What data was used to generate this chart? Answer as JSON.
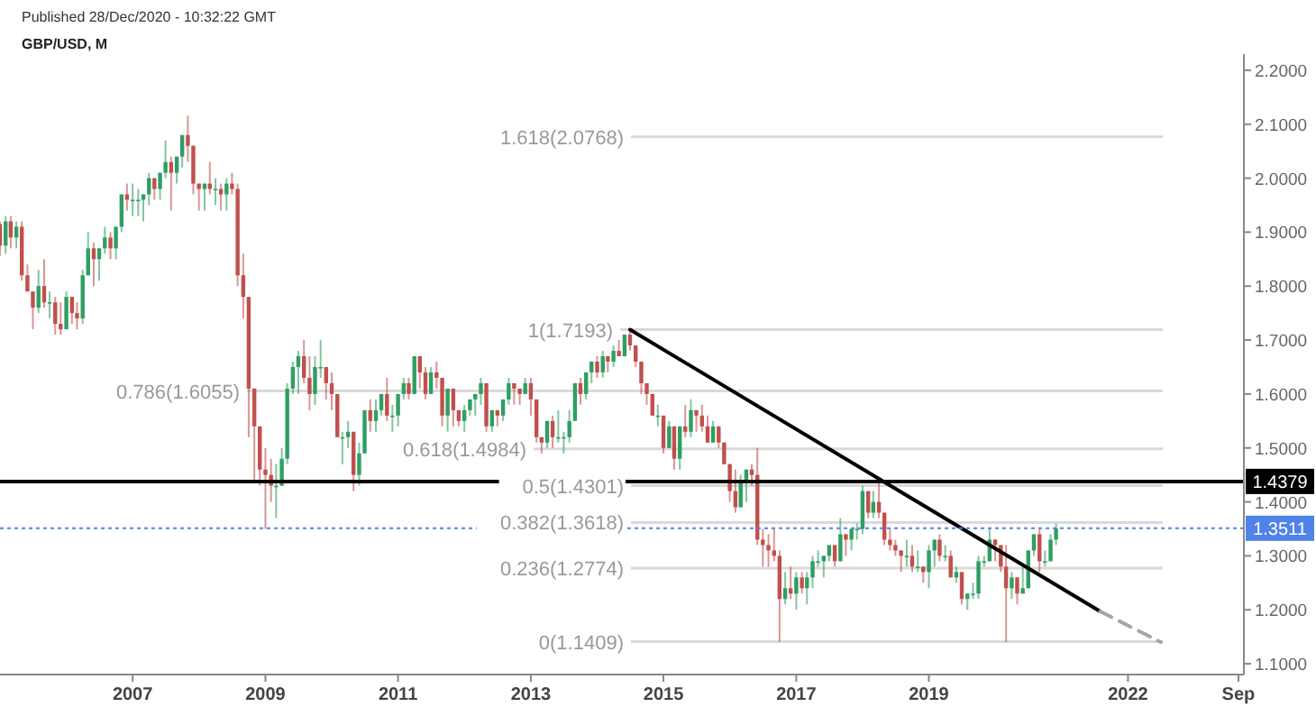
{
  "chart_data": {
    "type": "candlestick",
    "title": "GBP/USD, M",
    "subtitle": "Published 28/Dec/2020 - 10:32:22 GMT",
    "x": [
      "2005-01",
      "2005-02",
      "2005-03",
      "2005-04",
      "2005-05",
      "2005-06",
      "2005-07",
      "2005-08",
      "2005-09",
      "2005-10",
      "2005-11",
      "2005-12",
      "2006-01",
      "2006-02",
      "2006-03",
      "2006-04",
      "2006-05",
      "2006-06",
      "2006-07",
      "2006-08",
      "2006-09",
      "2006-10",
      "2006-11",
      "2006-12",
      "2007-01",
      "2007-02",
      "2007-03",
      "2007-04",
      "2007-05",
      "2007-06",
      "2007-07",
      "2007-08",
      "2007-09",
      "2007-10",
      "2007-11",
      "2007-12",
      "2008-01",
      "2008-02",
      "2008-03",
      "2008-04",
      "2008-05",
      "2008-06",
      "2008-07",
      "2008-08",
      "2008-09",
      "2008-10",
      "2008-11",
      "2008-12",
      "2009-01",
      "2009-02",
      "2009-03",
      "2009-04",
      "2009-05",
      "2009-06",
      "2009-07",
      "2009-08",
      "2009-09",
      "2009-10",
      "2009-11",
      "2009-12",
      "2010-01",
      "2010-02",
      "2010-03",
      "2010-04",
      "2010-05",
      "2010-06",
      "2010-07",
      "2010-08",
      "2010-09",
      "2010-10",
      "2010-11",
      "2010-12",
      "2011-01",
      "2011-02",
      "2011-03",
      "2011-04",
      "2011-05",
      "2011-06",
      "2011-07",
      "2011-08",
      "2011-09",
      "2011-10",
      "2011-11",
      "2011-12",
      "2012-01",
      "2012-02",
      "2012-03",
      "2012-04",
      "2012-05",
      "2012-06",
      "2012-07",
      "2012-08",
      "2012-09",
      "2012-10",
      "2012-11",
      "2012-12",
      "2013-01",
      "2013-02",
      "2013-03",
      "2013-04",
      "2013-05",
      "2013-06",
      "2013-07",
      "2013-08",
      "2013-09",
      "2013-10",
      "2013-11",
      "2013-12",
      "2014-01",
      "2014-02",
      "2014-03",
      "2014-04",
      "2014-05",
      "2014-06",
      "2014-07",
      "2014-08",
      "2014-09",
      "2014-10",
      "2014-11",
      "2014-12",
      "2015-01",
      "2015-02",
      "2015-03",
      "2015-04",
      "2015-05",
      "2015-06",
      "2015-07",
      "2015-08",
      "2015-09",
      "2015-10",
      "2015-11",
      "2015-12",
      "2016-01",
      "2016-02",
      "2016-03",
      "2016-04",
      "2016-05",
      "2016-06",
      "2016-07",
      "2016-08",
      "2016-09",
      "2016-10",
      "2016-11",
      "2016-12",
      "2017-01",
      "2017-02",
      "2017-03",
      "2017-04",
      "2017-05",
      "2017-06",
      "2017-07",
      "2017-08",
      "2017-09",
      "2017-10",
      "2017-11",
      "2017-12",
      "2018-01",
      "2018-02",
      "2018-03",
      "2018-04",
      "2018-05",
      "2018-06",
      "2018-07",
      "2018-08",
      "2018-09",
      "2018-10",
      "2018-11",
      "2018-12",
      "2019-01",
      "2019-02",
      "2019-03",
      "2019-04",
      "2019-05",
      "2019-06",
      "2019-07",
      "2019-08",
      "2019-09",
      "2019-10",
      "2019-11",
      "2019-12",
      "2020-01",
      "2020-02",
      "2020-03",
      "2020-04",
      "2020-05",
      "2020-06",
      "2020-07",
      "2020-08",
      "2020-09",
      "2020-10",
      "2020-11",
      "2020-12"
    ],
    "ohlc": [
      [
        1.915,
        1.92,
        1.855,
        1.875
      ],
      [
        1.875,
        1.93,
        1.86,
        1.92
      ],
      [
        1.92,
        1.93,
        1.87,
        1.89
      ],
      [
        1.89,
        1.92,
        1.87,
        1.91
      ],
      [
        1.91,
        1.92,
        1.81,
        1.82
      ],
      [
        1.82,
        1.84,
        1.79,
        1.79
      ],
      [
        1.79,
        1.79,
        1.72,
        1.76
      ],
      [
        1.76,
        1.83,
        1.75,
        1.8
      ],
      [
        1.8,
        1.85,
        1.76,
        1.77
      ],
      [
        1.77,
        1.79,
        1.74,
        1.77
      ],
      [
        1.77,
        1.78,
        1.71,
        1.73
      ],
      [
        1.73,
        1.77,
        1.71,
        1.72
      ],
      [
        1.72,
        1.79,
        1.72,
        1.78
      ],
      [
        1.78,
        1.78,
        1.73,
        1.75
      ],
      [
        1.75,
        1.77,
        1.72,
        1.74
      ],
      [
        1.74,
        1.83,
        1.73,
        1.82
      ],
      [
        1.82,
        1.9,
        1.82,
        1.87
      ],
      [
        1.87,
        1.88,
        1.8,
        1.85
      ],
      [
        1.85,
        1.87,
        1.81,
        1.87
      ],
      [
        1.87,
        1.91,
        1.86,
        1.89
      ],
      [
        1.89,
        1.9,
        1.85,
        1.87
      ],
      [
        1.87,
        1.91,
        1.85,
        1.91
      ],
      [
        1.91,
        1.97,
        1.9,
        1.97
      ],
      [
        1.97,
        1.99,
        1.94,
        1.96
      ],
      [
        1.96,
        1.99,
        1.93,
        1.96
      ],
      [
        1.96,
        1.98,
        1.93,
        1.96
      ],
      [
        1.96,
        1.97,
        1.92,
        1.97
      ],
      [
        1.97,
        2.01,
        1.95,
        2.0
      ],
      [
        2.0,
        2.0,
        1.96,
        1.98
      ],
      [
        1.98,
        2.01,
        1.96,
        2.01
      ],
      [
        2.01,
        2.07,
        2.0,
        2.03
      ],
      [
        2.03,
        2.04,
        1.94,
        2.01
      ],
      [
        2.01,
        2.04,
        1.99,
        2.04
      ],
      [
        2.04,
        2.08,
        2.02,
        2.08
      ],
      [
        2.08,
        2.116,
        2.03,
        2.06
      ],
      [
        2.06,
        2.06,
        1.97,
        1.99
      ],
      [
        1.99,
        1.99,
        1.94,
        1.98
      ],
      [
        1.98,
        1.99,
        1.94,
        1.99
      ],
      [
        1.99,
        2.03,
        1.97,
        1.98
      ],
      [
        1.98,
        2.0,
        1.95,
        1.98
      ],
      [
        1.98,
        1.99,
        1.94,
        1.97
      ],
      [
        1.97,
        2.0,
        1.94,
        1.99
      ],
      [
        1.99,
        2.01,
        1.97,
        1.98
      ],
      [
        1.98,
        1.99,
        1.8,
        1.82
      ],
      [
        1.82,
        1.86,
        1.74,
        1.78
      ],
      [
        1.78,
        1.78,
        1.52,
        1.61
      ],
      [
        1.61,
        1.61,
        1.44,
        1.54
      ],
      [
        1.54,
        1.54,
        1.43,
        1.46
      ],
      [
        1.46,
        1.5,
        1.35,
        1.45
      ],
      [
        1.45,
        1.48,
        1.4,
        1.43
      ],
      [
        1.43,
        1.47,
        1.37,
        1.43
      ],
      [
        1.43,
        1.5,
        1.43,
        1.48
      ],
      [
        1.48,
        1.62,
        1.47,
        1.61
      ],
      [
        1.61,
        1.66,
        1.6,
        1.65
      ],
      [
        1.65,
        1.68,
        1.6,
        1.67
      ],
      [
        1.67,
        1.7,
        1.62,
        1.63
      ],
      [
        1.63,
        1.67,
        1.57,
        1.6
      ],
      [
        1.6,
        1.67,
        1.58,
        1.65
      ],
      [
        1.65,
        1.7,
        1.63,
        1.65
      ],
      [
        1.65,
        1.65,
        1.59,
        1.62
      ],
      [
        1.62,
        1.64,
        1.57,
        1.6
      ],
      [
        1.6,
        1.6,
        1.52,
        1.52
      ],
      [
        1.52,
        1.53,
        1.47,
        1.52
      ],
      [
        1.52,
        1.55,
        1.5,
        1.53
      ],
      [
        1.53,
        1.53,
        1.42,
        1.45
      ],
      [
        1.45,
        1.51,
        1.43,
        1.49
      ],
      [
        1.49,
        1.57,
        1.49,
        1.57
      ],
      [
        1.57,
        1.59,
        1.53,
        1.55
      ],
      [
        1.55,
        1.59,
        1.53,
        1.57
      ],
      [
        1.57,
        1.6,
        1.56,
        1.6
      ],
      [
        1.6,
        1.63,
        1.55,
        1.56
      ],
      [
        1.56,
        1.58,
        1.53,
        1.56
      ],
      [
        1.56,
        1.6,
        1.54,
        1.6
      ],
      [
        1.6,
        1.63,
        1.59,
        1.62
      ],
      [
        1.62,
        1.63,
        1.59,
        1.6
      ],
      [
        1.6,
        1.67,
        1.6,
        1.67
      ],
      [
        1.67,
        1.67,
        1.61,
        1.64
      ],
      [
        1.64,
        1.65,
        1.59,
        1.6
      ],
      [
        1.6,
        1.65,
        1.6,
        1.64
      ],
      [
        1.64,
        1.66,
        1.61,
        1.63
      ],
      [
        1.63,
        1.63,
        1.54,
        1.56
      ],
      [
        1.56,
        1.61,
        1.53,
        1.61
      ],
      [
        1.61,
        1.61,
        1.54,
        1.57
      ],
      [
        1.57,
        1.57,
        1.54,
        1.55
      ],
      [
        1.55,
        1.58,
        1.53,
        1.57
      ],
      [
        1.57,
        1.59,
        1.56,
        1.59
      ],
      [
        1.59,
        1.6,
        1.56,
        1.6
      ],
      [
        1.6,
        1.63,
        1.58,
        1.62
      ],
      [
        1.62,
        1.62,
        1.53,
        1.54
      ],
      [
        1.54,
        1.57,
        1.53,
        1.57
      ],
      [
        1.57,
        1.57,
        1.54,
        1.56
      ],
      [
        1.56,
        1.59,
        1.55,
        1.59
      ],
      [
        1.59,
        1.63,
        1.58,
        1.62
      ],
      [
        1.62,
        1.62,
        1.58,
        1.61
      ],
      [
        1.61,
        1.61,
        1.58,
        1.6
      ],
      [
        1.6,
        1.63,
        1.6,
        1.62
      ],
      [
        1.62,
        1.63,
        1.56,
        1.59
      ],
      [
        1.59,
        1.59,
        1.51,
        1.52
      ],
      [
        1.52,
        1.52,
        1.49,
        1.51
      ],
      [
        1.51,
        1.55,
        1.5,
        1.55
      ],
      [
        1.55,
        1.56,
        1.5,
        1.52
      ],
      [
        1.52,
        1.57,
        1.51,
        1.52
      ],
      [
        1.52,
        1.53,
        1.49,
        1.52
      ],
      [
        1.52,
        1.57,
        1.51,
        1.55
      ],
      [
        1.55,
        1.62,
        1.55,
        1.62
      ],
      [
        1.62,
        1.63,
        1.58,
        1.6
      ],
      [
        1.6,
        1.64,
        1.59,
        1.64
      ],
      [
        1.64,
        1.66,
        1.62,
        1.66
      ],
      [
        1.66,
        1.67,
        1.63,
        1.64
      ],
      [
        1.64,
        1.68,
        1.63,
        1.67
      ],
      [
        1.67,
        1.67,
        1.64,
        1.66
      ],
      [
        1.66,
        1.69,
        1.65,
        1.68
      ],
      [
        1.68,
        1.7,
        1.67,
        1.67
      ],
      [
        1.67,
        1.71,
        1.67,
        1.71
      ],
      [
        1.71,
        1.7193,
        1.68,
        1.69
      ],
      [
        1.69,
        1.69,
        1.65,
        1.66
      ],
      [
        1.66,
        1.66,
        1.6,
        1.62
      ],
      [
        1.62,
        1.62,
        1.58,
        1.6
      ],
      [
        1.6,
        1.6,
        1.56,
        1.56
      ],
      [
        1.56,
        1.58,
        1.54,
        1.56
      ],
      [
        1.56,
        1.56,
        1.49,
        1.5
      ],
      [
        1.5,
        1.55,
        1.5,
        1.54
      ],
      [
        1.54,
        1.54,
        1.46,
        1.48
      ],
      [
        1.48,
        1.54,
        1.46,
        1.54
      ],
      [
        1.54,
        1.58,
        1.52,
        1.53
      ],
      [
        1.53,
        1.59,
        1.52,
        1.57
      ],
      [
        1.57,
        1.57,
        1.53,
        1.56
      ],
      [
        1.56,
        1.58,
        1.53,
        1.54
      ],
      [
        1.54,
        1.56,
        1.51,
        1.51
      ],
      [
        1.51,
        1.55,
        1.51,
        1.54
      ],
      [
        1.54,
        1.54,
        1.5,
        1.51
      ],
      [
        1.51,
        1.51,
        1.47,
        1.47
      ],
      [
        1.47,
        1.47,
        1.4,
        1.42
      ],
      [
        1.42,
        1.46,
        1.38,
        1.39
      ],
      [
        1.39,
        1.45,
        1.39,
        1.44
      ],
      [
        1.44,
        1.46,
        1.4,
        1.46
      ],
      [
        1.46,
        1.47,
        1.43,
        1.45
      ],
      [
        1.45,
        1.5,
        1.32,
        1.33
      ],
      [
        1.33,
        1.35,
        1.28,
        1.32
      ],
      [
        1.32,
        1.34,
        1.28,
        1.31
      ],
      [
        1.31,
        1.35,
        1.29,
        1.3
      ],
      [
        1.3,
        1.31,
        1.1409,
        1.22
      ],
      [
        1.22,
        1.27,
        1.21,
        1.24
      ],
      [
        1.24,
        1.28,
        1.22,
        1.23
      ],
      [
        1.23,
        1.27,
        1.2,
        1.26
      ],
      [
        1.26,
        1.27,
        1.23,
        1.24
      ],
      [
        1.24,
        1.27,
        1.21,
        1.26
      ],
      [
        1.26,
        1.3,
        1.24,
        1.29
      ],
      [
        1.29,
        1.31,
        1.28,
        1.29
      ],
      [
        1.29,
        1.3,
        1.26,
        1.3
      ],
      [
        1.3,
        1.32,
        1.29,
        1.32
      ],
      [
        1.32,
        1.32,
        1.28,
        1.29
      ],
      [
        1.29,
        1.37,
        1.29,
        1.34
      ],
      [
        1.34,
        1.34,
        1.3,
        1.33
      ],
      [
        1.33,
        1.35,
        1.31,
        1.35
      ],
      [
        1.35,
        1.36,
        1.33,
        1.35
      ],
      [
        1.35,
        1.43,
        1.34,
        1.42
      ],
      [
        1.42,
        1.42,
        1.37,
        1.38
      ],
      [
        1.38,
        1.42,
        1.37,
        1.4
      ],
      [
        1.4,
        1.44,
        1.37,
        1.38
      ],
      [
        1.38,
        1.38,
        1.32,
        1.33
      ],
      [
        1.33,
        1.35,
        1.31,
        1.32
      ],
      [
        1.32,
        1.33,
        1.3,
        1.31
      ],
      [
        1.31,
        1.31,
        1.27,
        1.3
      ],
      [
        1.3,
        1.33,
        1.28,
        1.3
      ],
      [
        1.3,
        1.32,
        1.27,
        1.28
      ],
      [
        1.28,
        1.31,
        1.27,
        1.28
      ],
      [
        1.28,
        1.28,
        1.25,
        1.27
      ],
      [
        1.27,
        1.32,
        1.24,
        1.31
      ],
      [
        1.31,
        1.33,
        1.28,
        1.33
      ],
      [
        1.33,
        1.34,
        1.29,
        1.3
      ],
      [
        1.3,
        1.32,
        1.29,
        1.3
      ],
      [
        1.3,
        1.31,
        1.26,
        1.26
      ],
      [
        1.26,
        1.28,
        1.25,
        1.27
      ],
      [
        1.27,
        1.27,
        1.21,
        1.22
      ],
      [
        1.22,
        1.23,
        1.2,
        1.23
      ],
      [
        1.23,
        1.25,
        1.22,
        1.23
      ],
      [
        1.23,
        1.3,
        1.22,
        1.29
      ],
      [
        1.29,
        1.3,
        1.28,
        1.29
      ],
      [
        1.29,
        1.35,
        1.29,
        1.33
      ],
      [
        1.33,
        1.33,
        1.29,
        1.32
      ],
      [
        1.32,
        1.32,
        1.27,
        1.28
      ],
      [
        1.28,
        1.32,
        1.14,
        1.24
      ],
      [
        1.24,
        1.27,
        1.22,
        1.26
      ],
      [
        1.26,
        1.26,
        1.21,
        1.23
      ],
      [
        1.23,
        1.28,
        1.23,
        1.24
      ],
      [
        1.24,
        1.31,
        1.24,
        1.31
      ],
      [
        1.31,
        1.34,
        1.3,
        1.34
      ],
      [
        1.34,
        1.35,
        1.27,
        1.29
      ],
      [
        1.29,
        1.31,
        1.28,
        1.29
      ],
      [
        1.29,
        1.34,
        1.29,
        1.33
      ],
      [
        1.33,
        1.36,
        1.32,
        1.3511
      ]
    ],
    "colors": [
      "#c0504d",
      "#2f9e62",
      "#c0504d",
      "#2f9e62",
      "#c0504d",
      "#c0504d",
      "#c0504d",
      "#2f9e62",
      "#c0504d",
      "#2f9e62",
      "#c0504d",
      "#c0504d",
      "#2f9e62",
      "#c0504d",
      "#c0504d",
      "#2f9e62",
      "#2f9e62",
      "#c0504d",
      "#2f9e62",
      "#2f9e62",
      "#c0504d",
      "#2f9e62",
      "#2f9e62",
      "#c0504d",
      "#2f9e62",
      "#2f9e62",
      "#2f9e62",
      "#2f9e62",
      "#c0504d",
      "#2f9e62",
      "#2f9e62",
      "#c0504d",
      "#2f9e62",
      "#2f9e62",
      "#c0504d",
      "#c0504d",
      "#c0504d",
      "#2f9e62",
      "#c0504d",
      "#2f9e62",
      "#c0504d",
      "#2f9e62",
      "#c0504d",
      "#c0504d",
      "#c0504d",
      "#c0504d",
      "#c0504d",
      "#c0504d",
      "#c0504d",
      "#c0504d",
      "#2f9e62",
      "#2f9e62",
      "#2f9e62",
      "#2f9e62",
      "#2f9e62",
      "#c0504d",
      "#c0504d",
      "#2f9e62",
      "#2f9e62",
      "#c0504d",
      "#c0504d",
      "#c0504d",
      "#2f9e62",
      "#2f9e62",
      "#c0504d",
      "#2f9e62",
      "#2f9e62",
      "#c0504d",
      "#2f9e62",
      "#2f9e62",
      "#c0504d",
      "#2f9e62",
      "#2f9e62",
      "#2f9e62",
      "#c0504d",
      "#2f9e62",
      "#c0504d",
      "#c0504d",
      "#2f9e62",
      "#c0504d",
      "#c0504d",
      "#2f9e62",
      "#c0504d",
      "#c0504d",
      "#2f9e62",
      "#2f9e62",
      "#2f9e62",
      "#2f9e62",
      "#c0504d",
      "#2f9e62",
      "#c0504d",
      "#2f9e62",
      "#2f9e62",
      "#c0504d",
      "#c0504d",
      "#2f9e62",
      "#c0504d",
      "#c0504d",
      "#c0504d",
      "#2f9e62",
      "#c0504d",
      "#2f9e62",
      "#2f9e62",
      "#2f9e62",
      "#2f9e62",
      "#c0504d",
      "#2f9e62",
      "#2f9e62",
      "#c0504d",
      "#2f9e62",
      "#c0504d",
      "#2f9e62",
      "#c0504d",
      "#2f9e62",
      "#c0504d",
      "#c0504d",
      "#c0504d",
      "#c0504d",
      "#c0504d",
      "#2f9e62",
      "#c0504d",
      "#2f9e62",
      "#c0504d",
      "#2f9e62",
      "#c0504d",
      "#2f9e62",
      "#c0504d",
      "#c0504d",
      "#c0504d",
      "#2f9e62",
      "#c0504d",
      "#c0504d",
      "#c0504d",
      "#c0504d",
      "#2f9e62",
      "#2f9e62",
      "#c0504d",
      "#c0504d",
      "#c0504d",
      "#c0504d",
      "#c0504d",
      "#c0504d",
      "#2f9e62",
      "#c0504d",
      "#2f9e62",
      "#c0504d",
      "#2f9e62",
      "#2f9e62",
      "#2f9e62",
      "#2f9e62",
      "#2f9e62",
      "#c0504d",
      "#2f9e62",
      "#c0504d",
      "#2f9e62",
      "#2f9e62",
      "#2f9e62",
      "#c0504d",
      "#2f9e62",
      "#c0504d",
      "#c0504d",
      "#c0504d",
      "#c0504d",
      "#c0504d",
      "#2f9e62",
      "#c0504d",
      "#2f9e62",
      "#c0504d",
      "#2f9e62",
      "#2f9e62",
      "#c0504d",
      "#2f9e62",
      "#c0504d",
      "#2f9e62",
      "#c0504d",
      "#2f9e62",
      "#2f9e62",
      "#2f9e62",
      "#2f9e62",
      "#2f9e62",
      "#c0504d",
      "#c0504d",
      "#c0504d",
      "#2f9e62",
      "#c0504d",
      "#2f9e62",
      "#2f9e62",
      "#2f9e62",
      "#c0504d",
      "#2f9e62",
      "#2f9e62",
      "#2f9e62"
    ],
    "series": [
      {
        "type": "line",
        "x": [
          "2014-07",
          "2021-08"
        ],
        "values": [
          1.7193,
          1.197
        ],
        "color": "#000000"
      },
      {
        "type": "line",
        "x": [
          "2021-08",
          "2022-07"
        ],
        "values": [
          1.197,
          1.14
        ],
        "color": "#a6a6a6",
        "line_style": "dashed"
      }
    ],
    "ref_lines": [
      {
        "axis": "y",
        "value": 2.0768,
        "label": "1.618(2.0768)"
      },
      {
        "axis": "y",
        "value": 1.7193,
        "label": "1(1.7193)"
      },
      {
        "axis": "y",
        "value": 1.6055,
        "label": "0.786(1.6055)"
      },
      {
        "axis": "y",
        "value": 1.4984,
        "label": "0.618(1.4984)"
      },
      {
        "axis": "y",
        "value": 1.4301,
        "label": "0.5(1.4301)"
      },
      {
        "axis": "y",
        "value": 1.3618,
        "label": "0.382(1.3618)"
      },
      {
        "axis": "y",
        "value": 1.2774,
        "label": "0.236(1.2774)"
      },
      {
        "axis": "y",
        "value": 1.1409,
        "label": "0(1.1409)"
      },
      {
        "axis": "y",
        "value": 1.4379,
        "label": "1.4379",
        "color": "#000000"
      },
      {
        "axis": "y",
        "value": 1.3511,
        "label": "1.3511",
        "color": "#4f83e8",
        "line_style": "dotted"
      }
    ],
    "xlim": [
      "2005-01",
      "2023-10"
    ],
    "xticks": [
      "2007",
      "2009",
      "2011",
      "2013",
      "2015",
      "2017",
      "2019",
      "2022",
      {
        "value": "2023-09",
        "label": "Sep"
      }
    ],
    "ylim": [
      1.08,
      2.23
    ],
    "yticks": [
      {
        "value": 1.1,
        "label": "1.1000"
      },
      {
        "value": 1.2,
        "label": "1.2000"
      },
      {
        "value": 1.3,
        "label": "1.3000"
      },
      {
        "value": 1.4,
        "label": "1.4000"
      },
      {
        "value": 1.5,
        "label": "1.5000"
      },
      {
        "value": 1.6,
        "label": "1.6000"
      },
      {
        "value": 1.7,
        "label": "1.7000"
      },
      {
        "value": 1.8,
        "label": "1.8000"
      },
      {
        "value": 1.9,
        "label": "1.9000"
      },
      {
        "value": 2.0,
        "label": "2.0000"
      },
      {
        "value": 2.1,
        "label": "2.1000"
      },
      {
        "value": 2.2,
        "label": "2.2000"
      }
    ]
  }
}
